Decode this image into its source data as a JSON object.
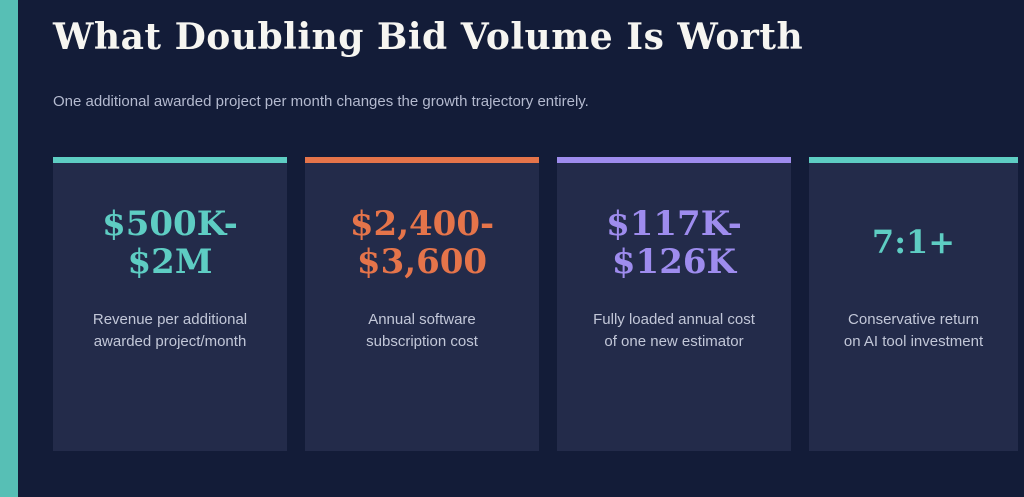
{
  "page": {
    "title": "What Doubling Bid Volume Is Worth",
    "subtitle": "One additional awarded project per month changes the growth trajectory entirely."
  },
  "colors": {
    "background": "#131c38",
    "left_stripe": "#57bfb5",
    "card_background": "#232b4a",
    "title_text": "#f6f5f1",
    "subtitle_text": "#b4bacf",
    "label_text": "#c2c7d8",
    "accent_teal": "#5ecdc3",
    "accent_orange": "#e5744a",
    "accent_purple": "#9e8cee"
  },
  "cards": [
    {
      "value": "$500K-\n$2M",
      "label": "Revenue per additional\nawarded project/month",
      "accent": "#5ecdc3"
    },
    {
      "value": "$2,400-\n$3,600",
      "label": "Annual software\nsubscription cost",
      "accent": "#e5744a"
    },
    {
      "value": "$117K-\n$126K",
      "label": "Fully loaded annual cost\nof one new estimator",
      "accent": "#9e8cee"
    },
    {
      "value": "7:1+",
      "label": "Conservative return\non AI tool investment",
      "accent": "#5ecdc3"
    }
  ]
}
